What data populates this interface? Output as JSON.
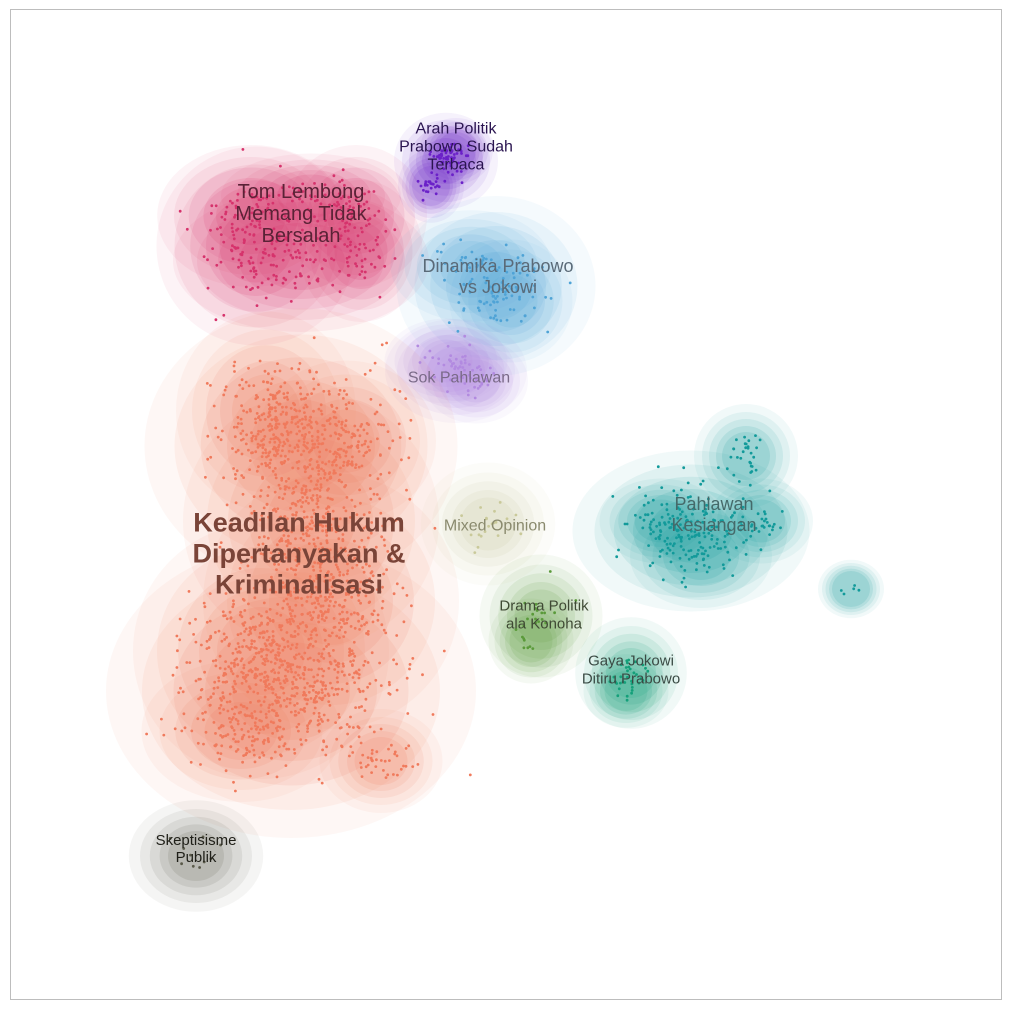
{
  "chart_data": {
    "type": "scatter",
    "title": "",
    "xlabel": "",
    "ylabel": "",
    "grid": false,
    "legend": "none",
    "clusters": [
      {
        "id": "tom-lembong",
        "label": "Tom Lembong Memang Tidak Bersalah",
        "lines": [
          "Tom Lembong",
          "Memang Tidak",
          "Bersalah"
        ],
        "color": "#d6336c",
        "label_color": "#5a2236",
        "center": [
          0.28,
          0.77
        ],
        "count": 330,
        "weight": "normal"
      },
      {
        "id": "arah-politik",
        "label": "Arah Politik Prabowo Sudah Terbaca",
        "lines": [
          "Arah Politik",
          "Prabowo Sudah",
          "Terbaca"
        ],
        "color": "#6b21c8",
        "label_color": "#2a1450",
        "center": [
          0.44,
          0.84
        ],
        "count": 80,
        "weight": "normal"
      },
      {
        "id": "dinamika",
        "label": "Dinamika Prabowo vs Jokowi",
        "lines": [
          "Dinamika Prabowo",
          "vs Jokowi"
        ],
        "color": "#4fa3d6",
        "label_color": "#5a6a78",
        "center": [
          0.48,
          0.72
        ],
        "count": 120,
        "weight": "normal"
      },
      {
        "id": "sok-pahlawan",
        "label": "Sok Pahlawan",
        "lines": [
          "Sok Pahlawan"
        ],
        "color": "#b28ae0",
        "label_color": "#7a6a88",
        "center": [
          0.45,
          0.63
        ],
        "count": 60,
        "weight": "normal"
      },
      {
        "id": "keadilan-hukum",
        "label": "Keadilan Hukum Dipertanyakan & Kriminalisasi",
        "lines": [
          "Keadilan Hukum",
          "Dipertanyakan &",
          "Kriminalisasi"
        ],
        "color": "#f07a5c",
        "label_color": "#7a4438",
        "center": [
          0.28,
          0.43
        ],
        "count": 1900,
        "weight": "bold"
      },
      {
        "id": "mixed-opinion",
        "label": "Mixed Opinion",
        "lines": [
          "Mixed Opinion"
        ],
        "color": "#c9c99a",
        "label_color": "#8a8a6e",
        "center": [
          0.48,
          0.48
        ],
        "count": 20,
        "weight": "normal"
      },
      {
        "id": "pahlawan-kesiangan",
        "label": "Pahlawan Kesiangan",
        "lines": [
          "Pahlawan",
          "Kesiangan"
        ],
        "color": "#129a9a",
        "label_color": "#456a6a",
        "center": [
          0.7,
          0.47
        ],
        "count": 260,
        "weight": "normal"
      },
      {
        "id": "drama-politik",
        "label": "Drama Politik ala Konoha",
        "lines": [
          "Drama Politik",
          "ala Konoha"
        ],
        "color": "#5a9a3a",
        "label_color": "#3f4a34",
        "center": [
          0.53,
          0.38
        ],
        "count": 25,
        "weight": "normal"
      },
      {
        "id": "gaya-jokowi",
        "label": "Gaya Jokowi Ditiru Prabowo",
        "lines": [
          "Gaya Jokowi",
          "Ditiru Prabowo"
        ],
        "color": "#14a07a",
        "label_color": "#3a4a44",
        "center": [
          0.62,
          0.32
        ],
        "count": 35,
        "weight": "normal"
      },
      {
        "id": "skeptisisme",
        "label": "Skeptisisme Publik",
        "lines": [
          "Skeptisisme",
          "Publik"
        ],
        "color": "#5a5a4a",
        "label_color": "#1f1f18",
        "center": [
          0.18,
          0.14
        ],
        "count": 10,
        "weight": "normal"
      }
    ]
  }
}
